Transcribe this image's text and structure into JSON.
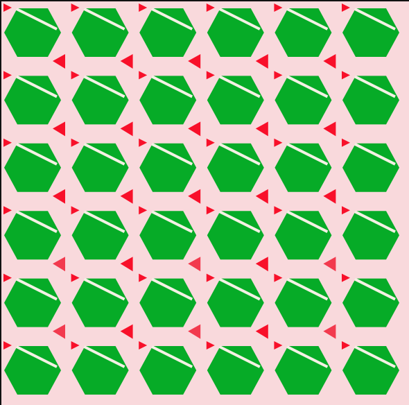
{
  "board": {
    "rows": 6,
    "cols": 6,
    "colors": {
      "background": "#f9d9dc",
      "border": "#111111",
      "tile": "#06ab27",
      "stripe": "#f4f1e4",
      "marker": "#f8102a",
      "marker_dim": "#f23a4e"
    },
    "piece": "green-hexagon-tile",
    "corner_marker": "small-red-triangle",
    "side_marker": "red-triangle",
    "dim_marker_rows": [
      3,
      4,
      5
    ]
  }
}
